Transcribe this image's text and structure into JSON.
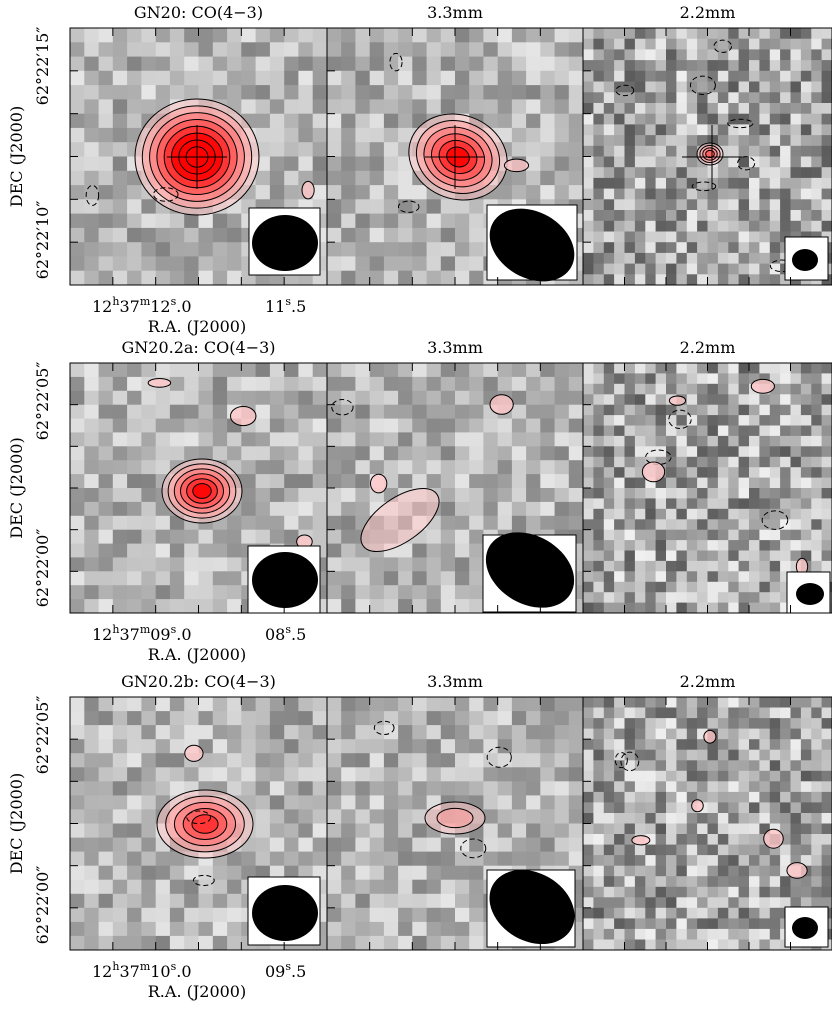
{
  "rows": [
    {
      "titles": [
        "GN20: CO(4−3)",
        "3.3mm",
        "2.2mm"
      ],
      "ylabel": "DEC (J2000)",
      "dec_ticks": [
        "62°22′15″",
        "62°22′10″"
      ],
      "ra_ticks": [
        [
          "12",
          "h",
          "37",
          "m",
          "12",
          "s",
          ".0"
        ],
        [
          "11",
          "s",
          ".5"
        ]
      ],
      "xlabel": "R.A. (J2000)"
    },
    {
      "titles": [
        "GN20.2a: CO(4−3)",
        "3.3mm",
        "2.2mm"
      ],
      "ylabel": "DEC (J2000)",
      "dec_ticks": [
        "62°22′05″",
        "62°22′00″"
      ],
      "ra_ticks": [
        [
          "12",
          "h",
          "37",
          "m",
          "09",
          "s",
          ".0"
        ],
        [
          "08",
          "s",
          ".5"
        ]
      ],
      "xlabel": "R.A. (J2000)"
    },
    {
      "titles": [
        "GN20.2b: CO(4−3)",
        "3.3mm",
        "2.2mm"
      ],
      "ylabel": "DEC (J2000)",
      "dec_ticks": [
        "62°22′05″",
        "62°22′00″"
      ],
      "ra_ticks": [
        [
          "12",
          "h",
          "37",
          "m",
          "10",
          "s",
          ".0"
        ],
        [
          "09",
          "s",
          ".5"
        ]
      ],
      "xlabel": "R.A. (J2000)"
    }
  ]
}
